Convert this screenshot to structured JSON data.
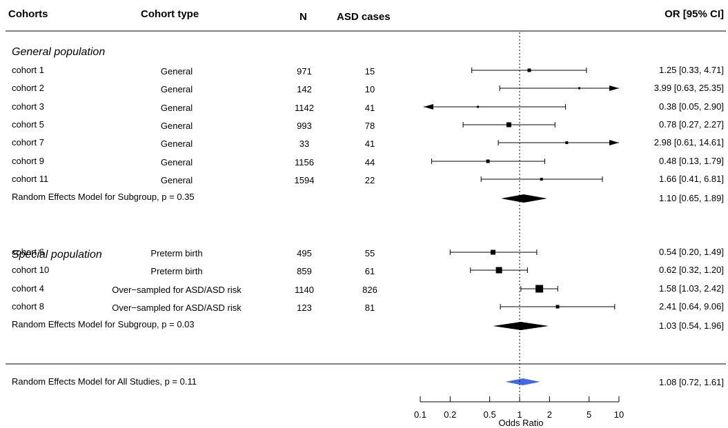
{
  "headers": {
    "cohorts": "Cohorts",
    "cohort_type": "Cohort type",
    "n": "N",
    "asd_cases": "ASD cases",
    "or_ci": "OR [95% CI]"
  },
  "chart_data": {
    "type": "forest",
    "x_scale": "log",
    "xlabel": "Odds Ratio",
    "xlim": [
      0.1,
      10
    ],
    "x_ticks": [
      "0.1",
      "0.2",
      "0.5",
      "1",
      "2",
      "5",
      "10"
    ],
    "x_tick_values": [
      0.1,
      0.2,
      0.5,
      1,
      2,
      5,
      10
    ],
    "reference_line": 1,
    "groups": [
      {
        "name": "General population",
        "studies": [
          {
            "cohort": "cohort 1",
            "type": "General",
            "n": "971",
            "asd": "15",
            "or": 1.25,
            "lo": 0.33,
            "hi": 4.71,
            "label": "1.25 [0.33,  4.71]",
            "box": 5,
            "arrow_lo": false,
            "arrow_hi": false
          },
          {
            "cohort": "cohort 2",
            "type": "General",
            "n": "142",
            "asd": "10",
            "or": 3.99,
            "lo": 0.63,
            "hi": 25.35,
            "label": "3.99 [0.63, 25.35]",
            "box": 3,
            "arrow_lo": false,
            "arrow_hi": true
          },
          {
            "cohort": "cohort 3",
            "type": "General",
            "n": "1142",
            "asd": "41",
            "or": 0.38,
            "lo": 0.05,
            "hi": 2.9,
            "label": "0.38 [0.05,  2.90]",
            "box": 3,
            "arrow_lo": true,
            "arrow_hi": false
          },
          {
            "cohort": "cohort 5",
            "type": "General",
            "n": "993",
            "asd": "78",
            "or": 0.78,
            "lo": 0.27,
            "hi": 2.27,
            "label": "0.78 [0.27,  2.27]",
            "box": 7,
            "arrow_lo": false,
            "arrow_hi": false
          },
          {
            "cohort": "cohort 7",
            "type": "General",
            "n": "33",
            "asd": "41",
            "or": 2.98,
            "lo": 0.61,
            "hi": 14.61,
            "label": "2.98 [0.61, 14.61]",
            "box": 4,
            "arrow_lo": false,
            "arrow_hi": true
          },
          {
            "cohort": "cohort 9",
            "type": "General",
            "n": "1156",
            "asd": "44",
            "or": 0.48,
            "lo": 0.13,
            "hi": 1.79,
            "label": "0.48 [0.13,  1.79]",
            "box": 5,
            "arrow_lo": false,
            "arrow_hi": false
          },
          {
            "cohort": "cohort 11",
            "type": "General",
            "n": "1594",
            "asd": "22",
            "or": 1.66,
            "lo": 0.41,
            "hi": 6.81,
            "label": "1.66 [0.41,  6.81]",
            "box": 4,
            "arrow_lo": false,
            "arrow_hi": false
          }
        ],
        "summary": {
          "label": "Random Effects Model for Subgroup, p = 0.35",
          "or": 1.1,
          "lo": 0.65,
          "hi": 1.89,
          "text": "1.10 [0.65, 1.89]"
        }
      },
      {
        "name": "Special population",
        "studies": [
          {
            "cohort": "cohort 6",
            "type": "Preterm birth",
            "n": "495",
            "asd": "55",
            "or": 0.54,
            "lo": 0.2,
            "hi": 1.49,
            "label": "0.54 [0.20,  1.49]",
            "box": 7,
            "arrow_lo": false,
            "arrow_hi": false
          },
          {
            "cohort": "cohort 10",
            "type": "Preterm birth",
            "n": "859",
            "asd": "61",
            "or": 0.62,
            "lo": 0.32,
            "hi": 1.2,
            "label": "0.62 [0.32,  1.20]",
            "box": 9,
            "arrow_lo": false,
            "arrow_hi": false
          },
          {
            "cohort": "cohort 4",
            "type": "Over−sampled for ASD/ASD risk",
            "n": "1140",
            "asd": "826",
            "or": 1.58,
            "lo": 1.03,
            "hi": 2.42,
            "label": "1.58 [1.03,  2.42]",
            "box": 11,
            "arrow_lo": false,
            "arrow_hi": false
          },
          {
            "cohort": "cohort 8",
            "type": "Over−sampled for ASD/ASD risk",
            "n": "123",
            "asd": "81",
            "or": 2.41,
            "lo": 0.64,
            "hi": 9.06,
            "label": "2.41 [0.64,  9.06]",
            "box": 5,
            "arrow_lo": false,
            "arrow_hi": false
          }
        ],
        "summary": {
          "label": "Random Effects Model for Subgroup, p = 0.03",
          "or": 1.03,
          "lo": 0.54,
          "hi": 1.96,
          "text": "1.03 [0.54, 1.96]"
        }
      }
    ],
    "overall": {
      "label": "Random Effects Model for All Studies, p = 0.11",
      "or": 1.08,
      "lo": 0.72,
      "hi": 1.61,
      "text": "1.08 [0.72,  1.61]",
      "color": "#4169e1"
    }
  }
}
